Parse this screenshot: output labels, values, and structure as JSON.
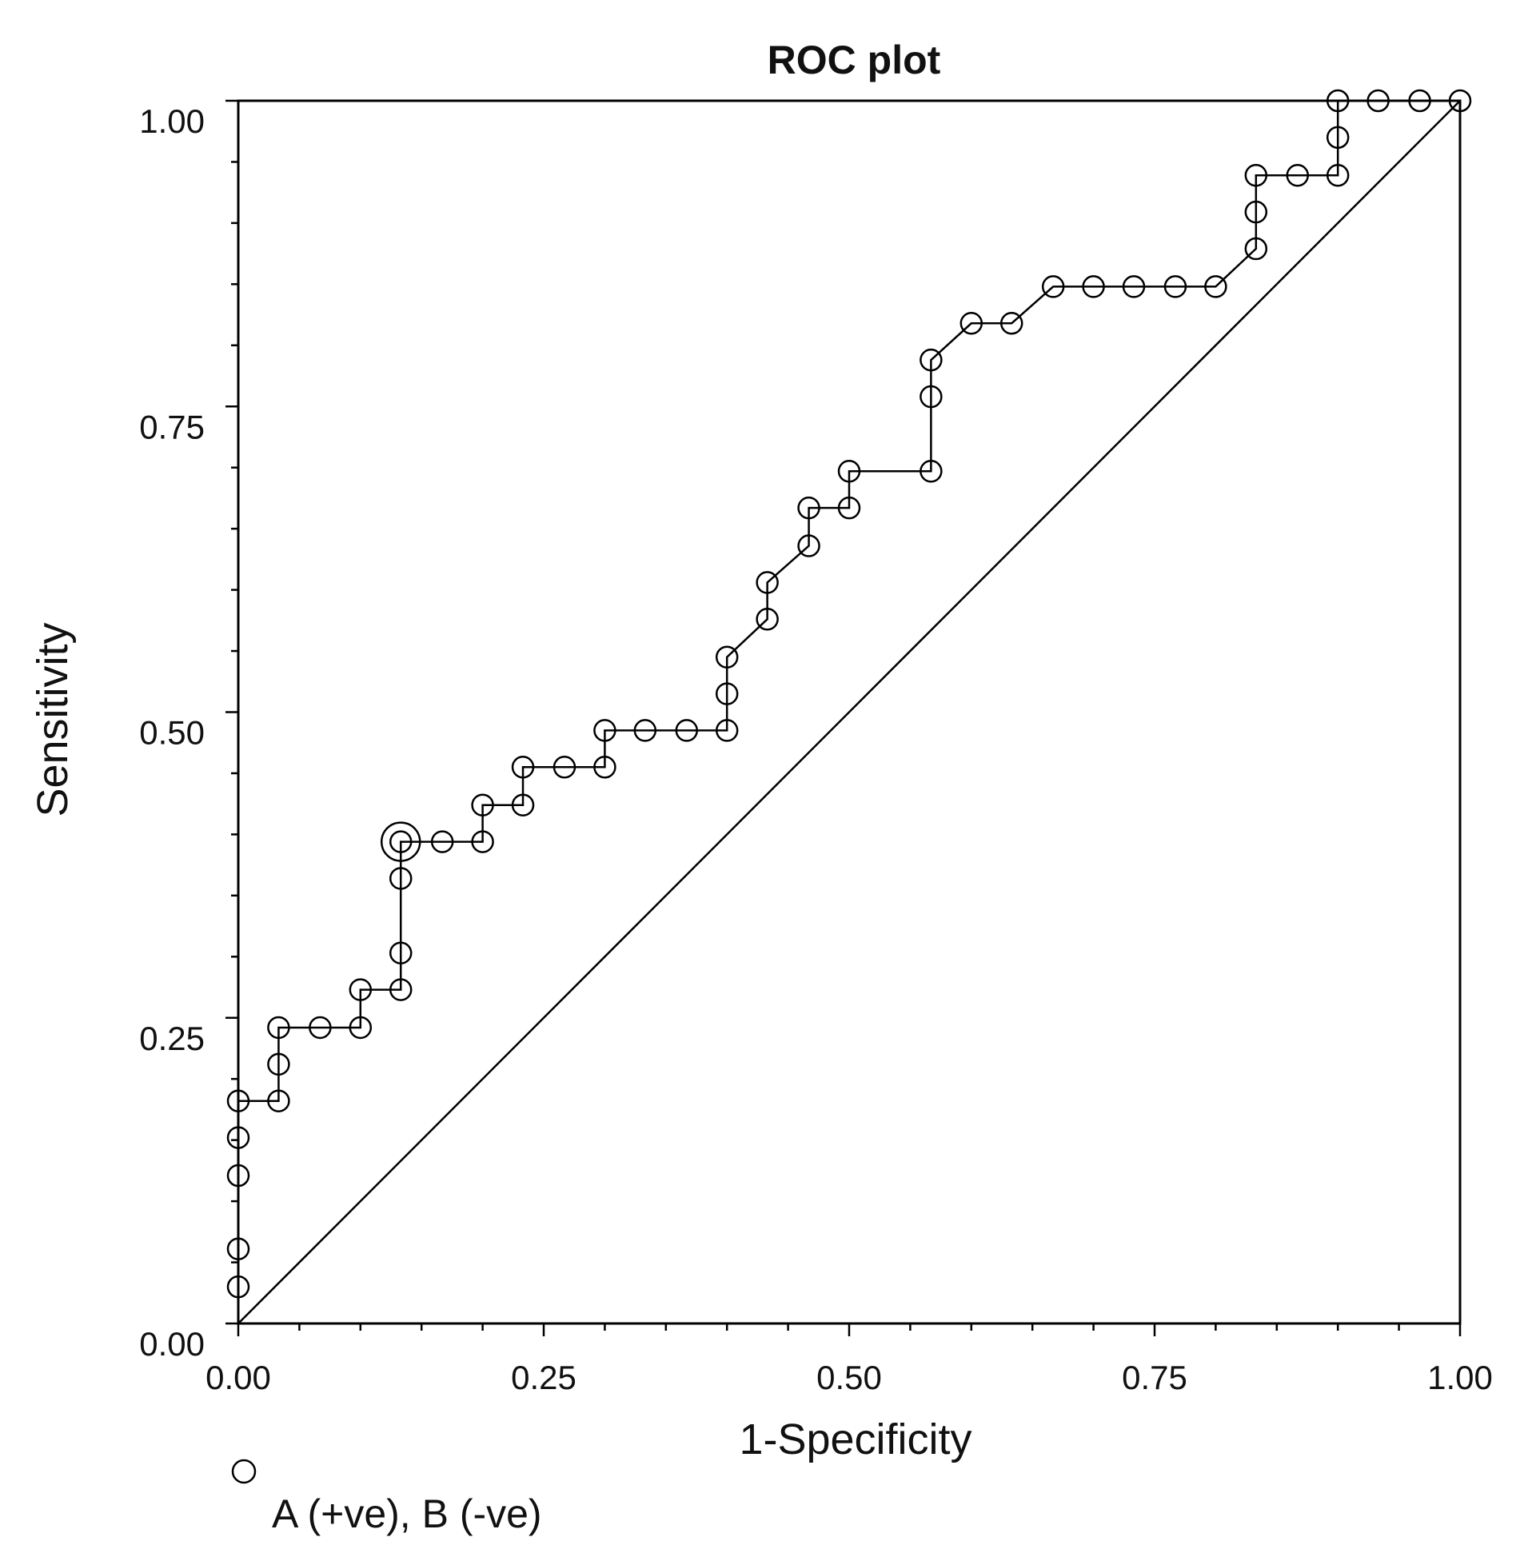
{
  "chart_data": {
    "type": "line",
    "title": "ROC plot",
    "xlabel": "1-Specificity",
    "ylabel": "Sensitivity",
    "xlim": [
      0,
      1
    ],
    "ylim": [
      0,
      1
    ],
    "x_ticks": [
      "0.00",
      "0.25",
      "0.50",
      "0.75",
      "1.00"
    ],
    "y_ticks": [
      "0.00",
      "0.25",
      "0.50",
      "0.75",
      "1.00"
    ],
    "reference_line": {
      "name": "chance diagonal",
      "from": [
        0,
        0
      ],
      "to": [
        1,
        1
      ]
    },
    "optimal_point": {
      "x": 0.133,
      "y": 0.394
    },
    "legend": {
      "label": "A (+ve), B (-ve)",
      "marker": "open-circle",
      "position": "bottom-left"
    },
    "series": [
      {
        "name": "ROC curve",
        "points": [
          [
            0.0,
            0.0
          ],
          [
            0.0,
            0.03
          ],
          [
            0.0,
            0.061
          ],
          [
            0.0,
            0.121
          ],
          [
            0.0,
            0.152
          ],
          [
            0.0,
            0.182
          ],
          [
            0.033,
            0.182
          ],
          [
            0.033,
            0.212
          ],
          [
            0.033,
            0.242
          ],
          [
            0.067,
            0.242
          ],
          [
            0.1,
            0.242
          ],
          [
            0.1,
            0.273
          ],
          [
            0.133,
            0.273
          ],
          [
            0.133,
            0.303
          ],
          [
            0.133,
            0.364
          ],
          [
            0.133,
            0.394
          ],
          [
            0.167,
            0.394
          ],
          [
            0.2,
            0.394
          ],
          [
            0.2,
            0.424
          ],
          [
            0.233,
            0.424
          ],
          [
            0.233,
            0.455
          ],
          [
            0.267,
            0.455
          ],
          [
            0.3,
            0.455
          ],
          [
            0.3,
            0.485
          ],
          [
            0.333,
            0.485
          ],
          [
            0.367,
            0.485
          ],
          [
            0.4,
            0.485
          ],
          [
            0.4,
            0.515
          ],
          [
            0.4,
            0.545
          ],
          [
            0.433,
            0.576
          ],
          [
            0.433,
            0.606
          ],
          [
            0.467,
            0.636
          ],
          [
            0.467,
            0.667
          ],
          [
            0.5,
            0.667
          ],
          [
            0.5,
            0.697
          ],
          [
            0.567,
            0.697
          ],
          [
            0.567,
            0.758
          ],
          [
            0.567,
            0.788
          ],
          [
            0.6,
            0.818
          ],
          [
            0.633,
            0.818
          ],
          [
            0.667,
            0.848
          ],
          [
            0.7,
            0.848
          ],
          [
            0.733,
            0.848
          ],
          [
            0.767,
            0.848
          ],
          [
            0.8,
            0.848
          ],
          [
            0.833,
            0.879
          ],
          [
            0.833,
            0.909
          ],
          [
            0.833,
            0.939
          ],
          [
            0.867,
            0.939
          ],
          [
            0.9,
            0.939
          ],
          [
            0.9,
            0.97
          ],
          [
            0.9,
            1.0
          ],
          [
            0.933,
            1.0
          ],
          [
            0.967,
            1.0
          ],
          [
            1.0,
            1.0
          ]
        ]
      }
    ]
  }
}
